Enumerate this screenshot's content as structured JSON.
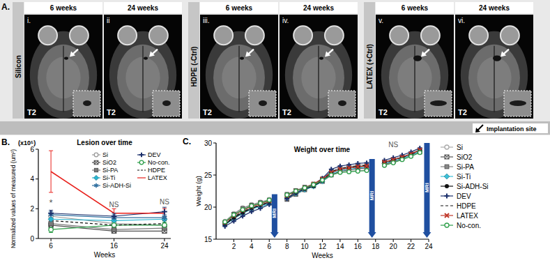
{
  "panel_a": {
    "label": "A.",
    "groups": [
      {
        "name": "Silicon",
        "images": [
          {
            "time": "6 weeks",
            "numeral": "i.",
            "sequence": "T2"
          },
          {
            "time": "24 weeks",
            "numeral": "ii",
            "sequence": "T2"
          }
        ]
      },
      {
        "name": "HDPE (-Ctrl)",
        "images": [
          {
            "time": "6 weeks",
            "numeral": "iii.",
            "sequence": "T2"
          },
          {
            "time": "24 weeks",
            "numeral": "iv.",
            "sequence": "T2"
          }
        ]
      },
      {
        "name": "LATEX (+Ctrl)",
        "images": [
          {
            "time": "6 weeks",
            "numeral": "v.",
            "sequence": "T2"
          },
          {
            "time": "24 weeks",
            "numeral": "vi.",
            "sequence": "T2"
          }
        ]
      }
    ],
    "key": "Implantation site"
  },
  "chart_data": [
    {
      "type": "line",
      "panel_label": "B.",
      "title": "Lesion over time",
      "y_unit": "(x10⁵)",
      "y_label": "Normalized values of measured (um²)",
      "x_label": "Weeks",
      "x": [
        6,
        16,
        24
      ],
      "xlim": [
        4,
        25
      ],
      "xticks": [
        6,
        16,
        24
      ],
      "ylim": [
        0,
        6
      ],
      "yticks": [
        0,
        2,
        4,
        6
      ],
      "grid": false,
      "legend": "top-right",
      "series": [
        {
          "name": "Si",
          "color": "#9a9a9a",
          "marker": "circle",
          "line_style": "solid",
          "values": [
            1.5,
            1.0,
            0.9
          ],
          "errors": [
            0.3,
            0.2,
            0.2
          ]
        },
        {
          "name": "SiO2",
          "color": "#4d4d4d",
          "marker": "square-x",
          "line_style": "solid",
          "values": [
            0.9,
            0.5,
            0.5
          ],
          "errors": [
            0.2,
            0.1,
            0.1
          ]
        },
        {
          "name": "Si-PA",
          "color": "#7a7a7a",
          "marker": "square",
          "line_style": "solid",
          "values": [
            1.0,
            0.6,
            0.7
          ],
          "errors": [
            0.2,
            0.1,
            0.2
          ]
        },
        {
          "name": "Si-Ti",
          "color": "#29b6d1",
          "marker": "diamond",
          "line_style": "solid",
          "values": [
            1.3,
            1.2,
            1.3
          ],
          "errors": [
            0.2,
            0.2,
            0.2
          ]
        },
        {
          "name": "Si-ADH-Si",
          "color": "#2f6f9f",
          "marker": "star",
          "line_style": "solid",
          "values": [
            1.6,
            1.4,
            1.4
          ],
          "errors": [
            0.2,
            0.2,
            0.2
          ]
        },
        {
          "name": "DEV",
          "color": "#1b2f6b",
          "marker": "plus",
          "line_style": "solid",
          "values": [
            1.7,
            1.5,
            1.8
          ],
          "errors": [
            0.2,
            0.2,
            0.3
          ]
        },
        {
          "name": "No-con.",
          "color": "#2e9e4a",
          "marker": "circle",
          "line_style": "solid",
          "values": [
            0.6,
            0.9,
            0.9
          ],
          "errors": [
            0.2,
            0.2,
            0.2
          ]
        },
        {
          "name": "HDPE",
          "color": "#111111",
          "marker": "none",
          "line_style": "dashed",
          "values": [
            1.2,
            0.9,
            1.0
          ],
          "errors": [
            0.2,
            0.2,
            0.2
          ]
        },
        {
          "name": "LATEX",
          "color": "#e8201b",
          "marker": "none",
          "line_style": "solid",
          "values": [
            4.5,
            1.7,
            1.7
          ],
          "errors": [
            1.4,
            0.3,
            0.3
          ]
        }
      ],
      "annotations": [
        {
          "text": "*",
          "x": 6,
          "y": 2.2
        },
        {
          "text": "NS",
          "x": 16,
          "y": 2.1
        },
        {
          "text": "NS",
          "x": 24,
          "y": 2.3
        }
      ]
    },
    {
      "type": "line",
      "panel_label": "C.",
      "title": "Weight over time",
      "y_label": "Weight (g)",
      "x_label": "Weeks",
      "x": [
        1,
        2,
        3,
        4,
        5,
        6,
        7,
        8,
        9,
        10,
        11,
        12,
        13,
        14,
        15,
        16,
        17,
        18,
        19,
        20,
        21,
        22,
        23
      ],
      "xlim": [
        0,
        24
      ],
      "xticks": [
        2,
        4,
        6,
        8,
        10,
        12,
        14,
        16,
        18,
        20,
        22,
        24
      ],
      "ylim": [
        15,
        30
      ],
      "yticks": [
        15,
        20,
        25,
        30
      ],
      "grid": false,
      "legend": "right",
      "series": [
        {
          "name": "Si",
          "color": "#aaaaaa",
          "marker": "circle",
          "line_style": "solid",
          "values": [
            17.8,
            19.0,
            19.9,
            20.4,
            20.8,
            21.2,
            null,
            21.9,
            22.6,
            23.1,
            23.6,
            24.3,
            25.1,
            25.5,
            25.6,
            25.7,
            25.8,
            null,
            26.6,
            27.0,
            27.5,
            28.1,
            28.7
          ]
        },
        {
          "name": "SiO2",
          "color": "#555555",
          "marker": "square-x",
          "line_style": "solid",
          "values": [
            17.4,
            18.4,
            19.2,
            19.8,
            20.2,
            20.6,
            null,
            21.2,
            22.0,
            22.7,
            23.3,
            24.0,
            25.0,
            25.6,
            25.8,
            26.0,
            26.1,
            null,
            26.7,
            27.1,
            27.6,
            28.1,
            28.6
          ]
        },
        {
          "name": "Si-PA",
          "color": "#888888",
          "marker": "square",
          "line_style": "solid",
          "values": [
            17.6,
            18.9,
            19.8,
            20.3,
            20.7,
            21.1,
            null,
            22.0,
            22.6,
            23.1,
            23.6,
            24.4,
            25.6,
            26.1,
            26.3,
            26.5,
            26.6,
            null,
            27.0,
            27.4,
            27.8,
            28.3,
            28.9
          ]
        },
        {
          "name": "Si-Ti",
          "color": "#3cc0d8",
          "marker": "diamond",
          "line_style": "solid",
          "values": [
            17.2,
            18.2,
            19.0,
            19.7,
            20.1,
            20.5,
            null,
            21.4,
            22.1,
            22.7,
            23.2,
            24.0,
            25.2,
            25.7,
            25.9,
            26.1,
            26.2,
            null,
            26.8,
            27.2,
            27.6,
            28.1,
            28.7
          ]
        },
        {
          "name": "Si-ADH-Si",
          "color": "#111111",
          "marker": "dot",
          "line_style": "solid",
          "values": [
            17.3,
            18.3,
            19.1,
            19.8,
            20.3,
            20.8,
            null,
            21.5,
            22.2,
            22.8,
            23.3,
            24.1,
            25.4,
            25.9,
            26.1,
            26.3,
            26.4,
            null,
            27.0,
            27.4,
            27.8,
            28.3,
            28.9
          ]
        },
        {
          "name": "DEV",
          "color": "#1b2f6b",
          "marker": "plus",
          "line_style": "solid",
          "values": [
            17.0,
            17.8,
            18.6,
            19.3,
            19.8,
            20.4,
            null,
            21.3,
            22.2,
            22.9,
            23.5,
            24.5,
            25.9,
            26.4,
            26.6,
            26.8,
            26.9,
            null,
            27.3,
            27.7,
            28.1,
            28.6,
            29.2
          ]
        },
        {
          "name": "HDPE",
          "color": "#111111",
          "marker": "none",
          "line_style": "dashed",
          "values": [
            17.4,
            18.5,
            19.3,
            19.9,
            20.3,
            20.8,
            null,
            21.7,
            22.4,
            23.0,
            23.5,
            24.3,
            25.5,
            26.0,
            26.2,
            26.4,
            26.5,
            null,
            26.9,
            27.3,
            27.7,
            28.2,
            28.8
          ]
        },
        {
          "name": "LATEX",
          "color": "#c0392b",
          "marker": "x",
          "line_style": "solid",
          "values": [
            17.6,
            18.7,
            19.5,
            20.1,
            20.5,
            21.0,
            null,
            21.8,
            22.5,
            23.0,
            23.6,
            24.4,
            25.4,
            25.9,
            26.1,
            26.3,
            26.4,
            null,
            27.0,
            27.4,
            27.8,
            28.3,
            28.9
          ]
        },
        {
          "name": "No-con.",
          "color": "#2e9e4a",
          "marker": "circle",
          "line_style": "solid",
          "values": [
            17.7,
            18.8,
            19.6,
            20.2,
            20.6,
            21.1,
            null,
            21.9,
            22.5,
            23.0,
            23.5,
            24.2,
            25.0,
            25.4,
            25.5,
            25.6,
            25.7,
            null,
            26.5,
            26.9,
            27.4,
            27.9,
            28.5
          ]
        }
      ],
      "annotations": [
        {
          "text": "MRI",
          "x": 6.6,
          "y": 22,
          "marker": "arrow"
        },
        {
          "text": "MRI",
          "x": 17.6,
          "y": 27.5,
          "marker": "arrow"
        },
        {
          "text": "NS",
          "x": 20,
          "y": 29.3
        },
        {
          "text": "MRI",
          "x": 23.8,
          "y": 30,
          "marker": "arrow"
        }
      ]
    }
  ]
}
